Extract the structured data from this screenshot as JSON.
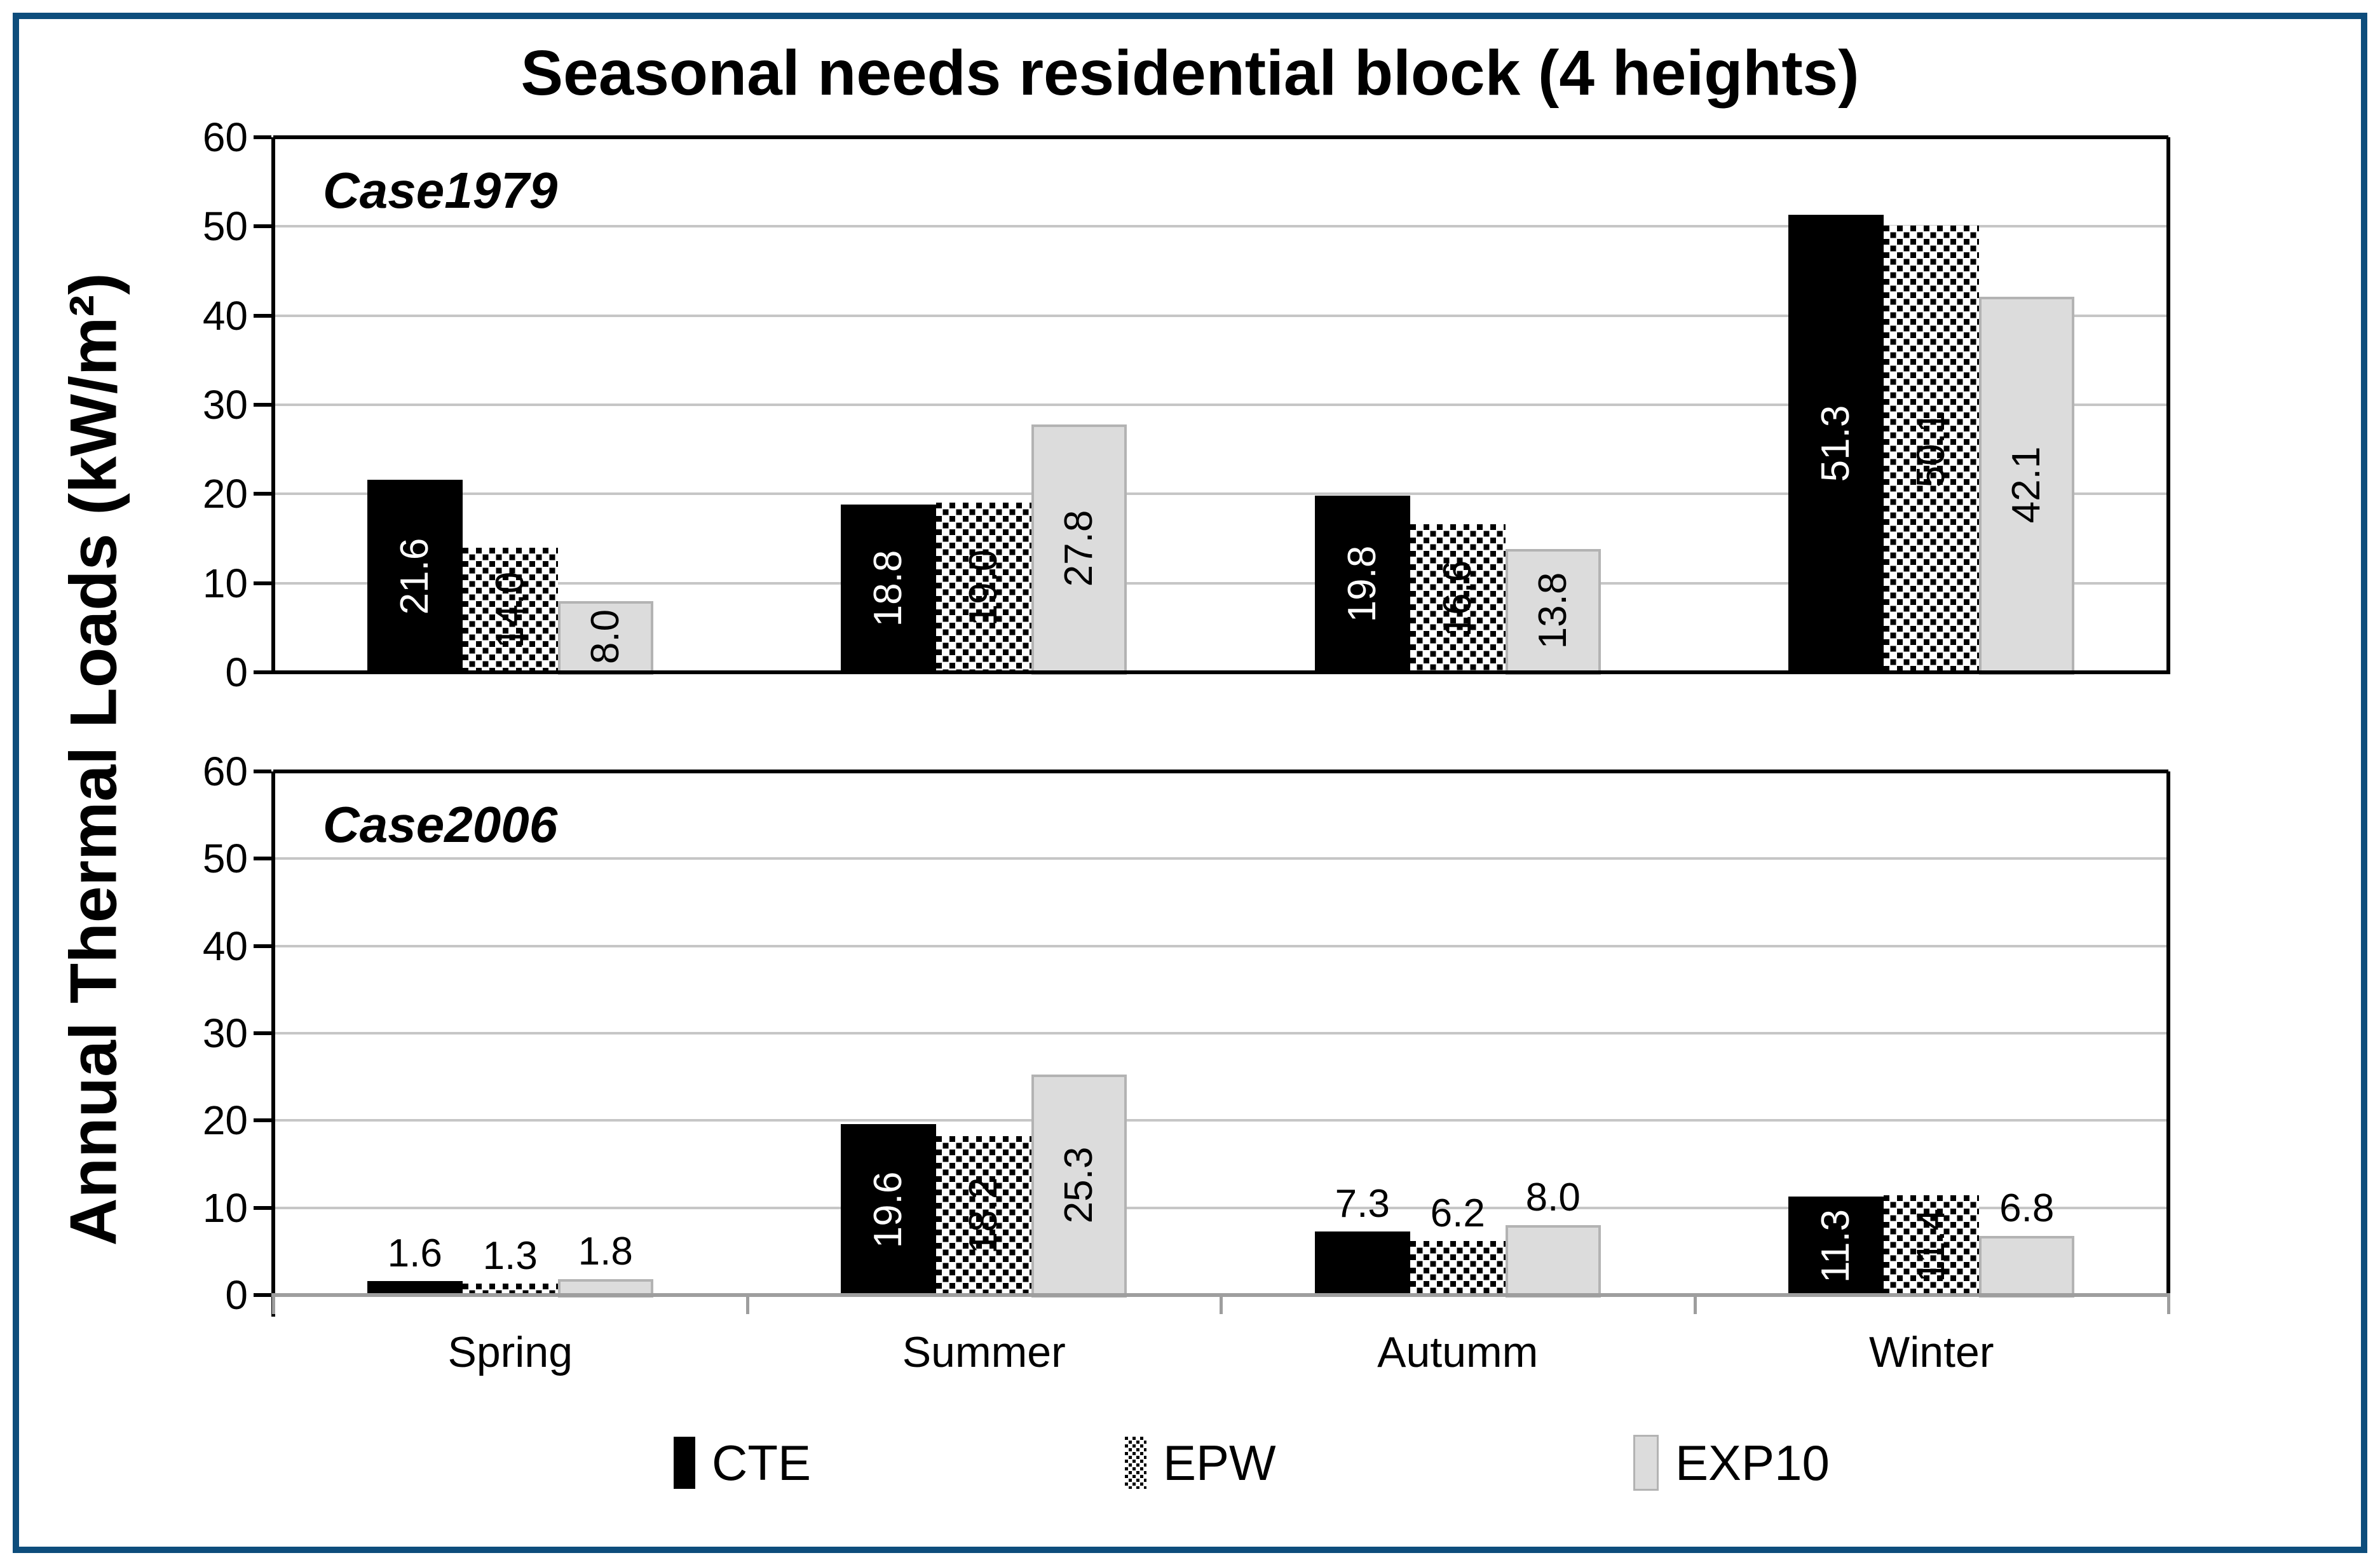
{
  "title": "Seasonal needs residential block (4 heights)",
  "y_axis_label": "Annual Thermal Loads (kW/m²)",
  "categories": [
    "Spring",
    "Summer",
    "Autumm",
    "Winter"
  ],
  "legend": [
    {
      "name": "CTE",
      "style": "cte"
    },
    {
      "name": "EPW",
      "style": "epw"
    },
    {
      "name": "EXP10",
      "style": "exp10"
    }
  ],
  "colors": {
    "figure_border": "#0d4d7c",
    "gridline": "#c6c6c6",
    "axis_black": "#000000",
    "bottom_axis_gray": "#9e9e9e",
    "cte_fill": "#000000",
    "epw_dot": "#000000",
    "exp10_fill": "#dcdcdc",
    "exp10_border": "#b3b3b3",
    "label_on_black": "#ffffff",
    "label_default": "#000000"
  },
  "chart_data": [
    {
      "type": "bar",
      "panel_label": "Case1979",
      "categories": [
        "Spring",
        "Summer",
        "Autumm",
        "Winter"
      ],
      "ylim": [
        0,
        60
      ],
      "ytick_step": 10,
      "grid": true,
      "series": [
        {
          "name": "CTE",
          "style": "cte",
          "values": [
            21.6,
            18.8,
            19.8,
            51.3
          ],
          "labels": [
            "21.6",
            "18.8",
            "19.8",
            "51.3"
          ],
          "label_pos": [
            "in",
            "in",
            "in",
            "in"
          ]
        },
        {
          "name": "EPW",
          "style": "epw",
          "values": [
            14.0,
            19.0,
            16.6,
            50.1
          ],
          "labels": [
            "14.0",
            "19.0",
            "16.6",
            "50.1"
          ],
          "label_pos": [
            "in",
            "in",
            "in",
            "in"
          ]
        },
        {
          "name": "EXP10",
          "style": "exp10",
          "values": [
            8.0,
            27.8,
            13.8,
            42.1
          ],
          "labels": [
            "8.0",
            "27.8",
            "13.8",
            "42.1"
          ],
          "label_pos": [
            "in",
            "in",
            "in",
            "in"
          ]
        }
      ]
    },
    {
      "type": "bar",
      "panel_label": "Case2006",
      "categories": [
        "Spring",
        "Summer",
        "Autumm",
        "Winter"
      ],
      "ylim": [
        0,
        60
      ],
      "ytick_step": 10,
      "grid": true,
      "series": [
        {
          "name": "CTE",
          "style": "cte",
          "values": [
            1.6,
            19.6,
            7.3,
            11.3
          ],
          "labels": [
            "1.6",
            "19.6",
            "7.3",
            "11.3"
          ],
          "label_pos": [
            "above",
            "in",
            "above",
            "in"
          ]
        },
        {
          "name": "EPW",
          "style": "epw",
          "values": [
            1.3,
            18.2,
            6.2,
            11.4
          ],
          "labels": [
            "1.3",
            "18.2",
            "6.2",
            "11.4"
          ],
          "label_pos": [
            "above",
            "in",
            "above",
            "in"
          ]
        },
        {
          "name": "EXP10",
          "style": "exp10",
          "values": [
            1.8,
            25.3,
            8.0,
            6.8
          ],
          "labels": [
            "1.8",
            "25.3",
            "8.0",
            "6.8"
          ],
          "label_pos": [
            "above",
            "in",
            "above",
            "above"
          ]
        }
      ]
    }
  ],
  "legend_position": "bottom"
}
